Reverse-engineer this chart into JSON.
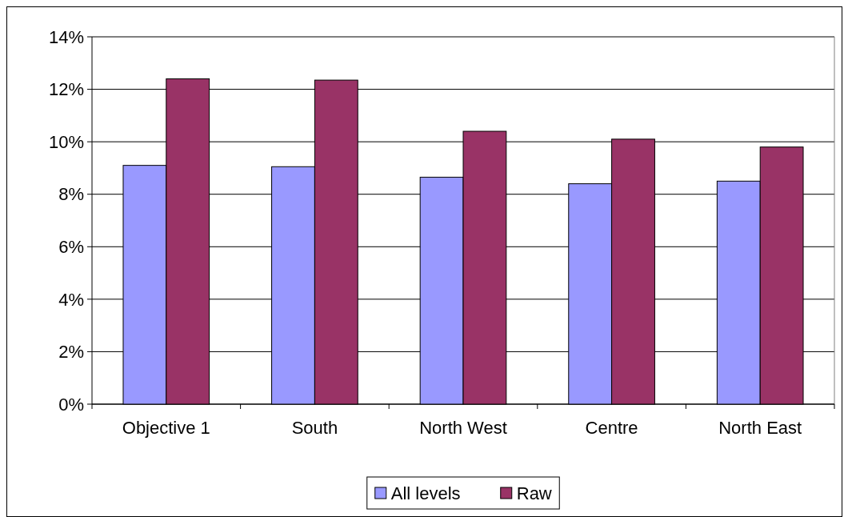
{
  "chart_data": {
    "type": "bar",
    "categories": [
      "Objective 1",
      "South",
      "North West",
      "Centre",
      "North East"
    ],
    "series": [
      {
        "name": "All levels",
        "color": "#9999ff",
        "values": [
          9.1,
          9.05,
          8.65,
          8.4,
          8.5
        ]
      },
      {
        "name": "Raw",
        "color": "#993366",
        "values": [
          12.4,
          12.35,
          10.4,
          10.1,
          9.8
        ]
      }
    ],
    "ylim": [
      0,
      14
    ],
    "yticks": [
      {
        "value": 0,
        "label": "0%"
      },
      {
        "value": 2,
        "label": "2%"
      },
      {
        "value": 4,
        "label": "4%"
      },
      {
        "value": 6,
        "label": "6%"
      },
      {
        "value": 8,
        "label": "8%"
      },
      {
        "value": 10,
        "label": "10%"
      },
      {
        "value": 12,
        "label": "12%"
      },
      {
        "value": 14,
        "label": "14%"
      }
    ],
    "grid": "y",
    "legend": "bottom"
  }
}
